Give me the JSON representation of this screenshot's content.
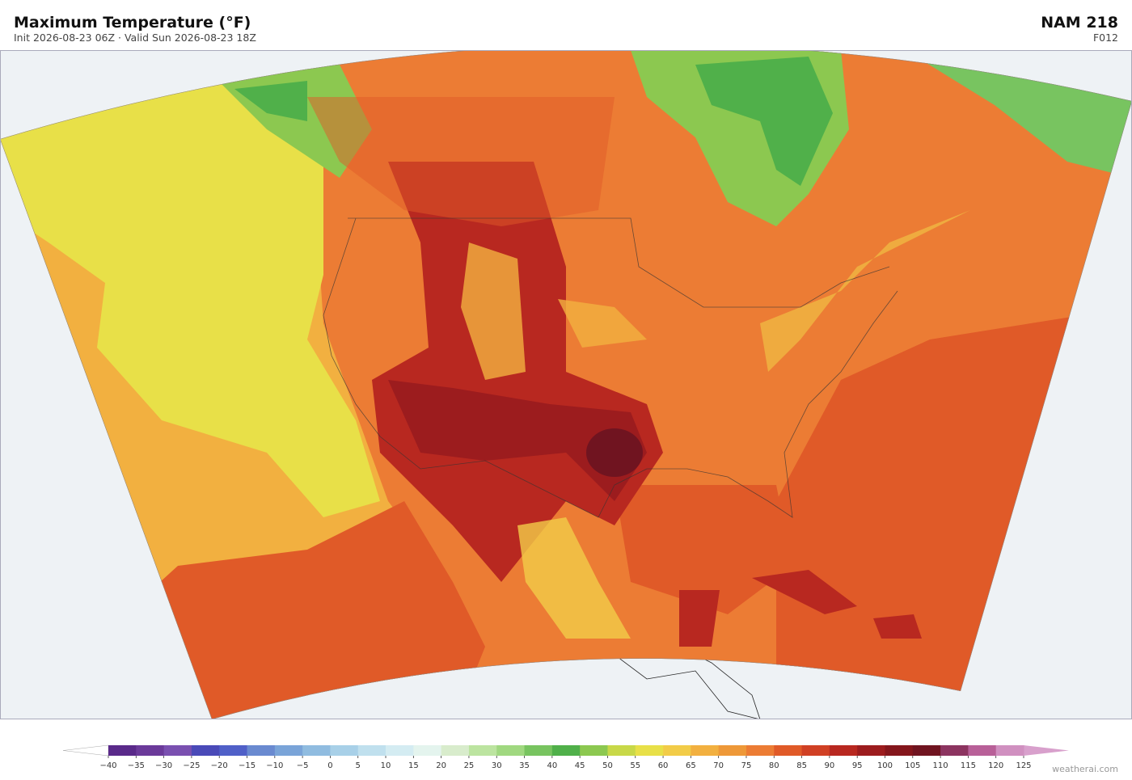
{
  "header": {
    "title": "Maximum Temperature  (°F)",
    "subtitle": "Init 2026-08-23 06Z  ·  Valid Sun 2026-08-23 18Z",
    "model": "NAM  218",
    "forecast_hour": "F012"
  },
  "colorbar": {
    "ticks": [
      {
        "value": -40,
        "label": "−40"
      },
      {
        "value": -35,
        "label": "−35"
      },
      {
        "value": -30,
        "label": "−30"
      },
      {
        "value": -25,
        "label": "−25"
      },
      {
        "value": -20,
        "label": "−20"
      },
      {
        "value": -15,
        "label": "−15"
      },
      {
        "value": -10,
        "label": "−10"
      },
      {
        "value": -5,
        "label": "−5"
      },
      0,
      5,
      10,
      15,
      20,
      25,
      30,
      35,
      40,
      45,
      50,
      55,
      60,
      65,
      70,
      75,
      80,
      85,
      90,
      95,
      100,
      105,
      110,
      115,
      120,
      125
    ],
    "colors": [
      "#5a2a8a",
      "#6b3a9a",
      "#7a50b0",
      "#4a4ab8",
      "#5060c8",
      "#6a8ad0",
      "#7aa4d8",
      "#90bce0",
      "#a8d0e8",
      "#c0e0ee",
      "#d4ecf2",
      "#e4f4ee",
      "#d8eccc",
      "#bce4a0",
      "#a0d880",
      "#78c460",
      "#50b04a",
      "#8cc850",
      "#c8d848",
      "#e8e048",
      "#f2cc48",
      "#f2b040",
      "#ee9838",
      "#ec7c34",
      "#e05a28",
      "#d04024",
      "#b82820",
      "#9c1c1e",
      "#84161c",
      "#701420",
      "#8c3460",
      "#b86098",
      "#d090c0"
    ],
    "under_color": "#ffffff",
    "over_color": "#d8a0cc"
  },
  "footer": {
    "watermark": "weatherai.com"
  }
}
